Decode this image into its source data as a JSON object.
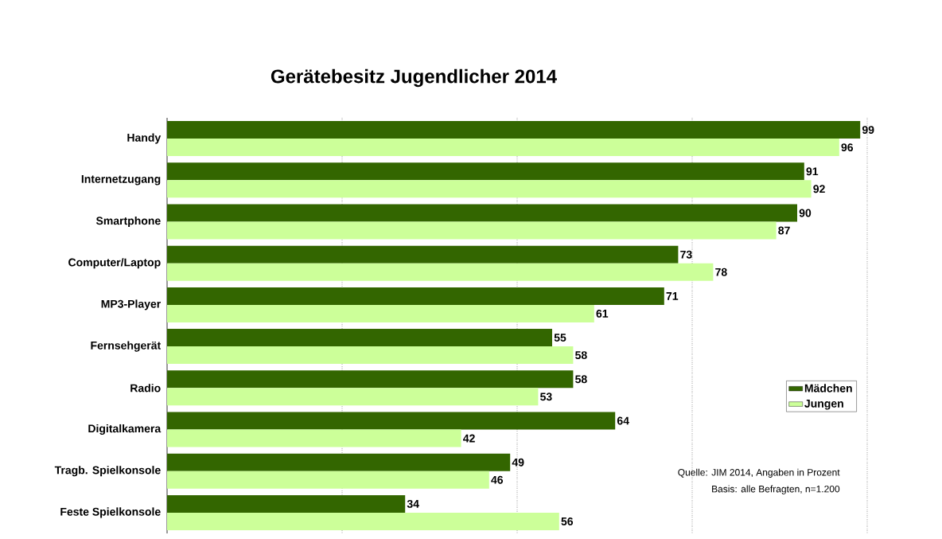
{
  "chart_data": {
    "type": "bar",
    "orientation": "horizontal",
    "title": "Gerätebesitz Jugendlicher 2014",
    "categories": [
      "Handy",
      "Internetzugang",
      "Smartphone",
      "Computer/Laptop",
      "MP3-Player",
      "Fernsehgerät",
      "Radio",
      "Digitalkamera",
      "Tragb. Spielkonsole",
      "Feste Spielkonsole"
    ],
    "series": [
      {
        "name": "Mädchen",
        "color": "#336600",
        "values": [
          99,
          91,
          90,
          73,
          71,
          55,
          58,
          64,
          49,
          34
        ]
      },
      {
        "name": "Jungen",
        "color": "#ccff99",
        "values": [
          96,
          92,
          87,
          78,
          61,
          58,
          53,
          42,
          46,
          56
        ]
      }
    ],
    "xlim": [
      0,
      100
    ],
    "xticks": [
      {
        "value": 25,
        "label": null
      },
      {
        "value": 50,
        "label": null
      },
      {
        "value": 75,
        "label": null
      },
      {
        "value": 100,
        "label": null
      }
    ],
    "tick_labels": "y",
    "grid": "x",
    "legend": "right",
    "data_labels": true,
    "annotations": [
      "Quelle: JIM 2014, Angaben in Prozent",
      "Basis: alle Befragten, n=1.200"
    ]
  }
}
